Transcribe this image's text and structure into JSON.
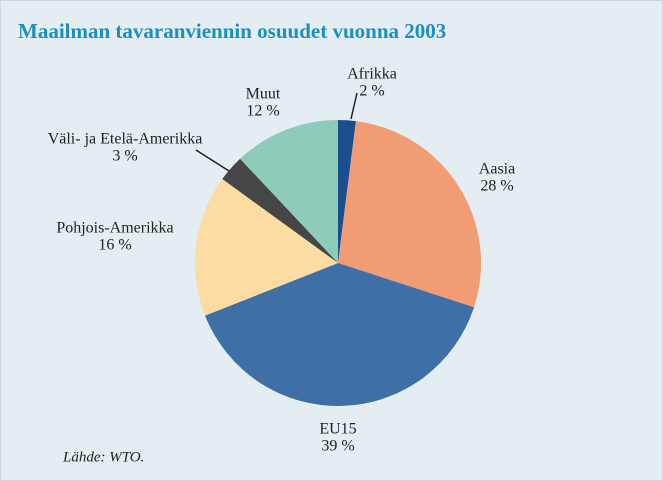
{
  "chart_data": {
    "type": "pie",
    "title": "Maailman tavaranviennin osuudet vuonna 2003",
    "categories": [
      "Afrikka",
      "Aasia",
      "EU15",
      "Pohjois-Amerikka",
      "Väli- ja Etelä-Amerikka",
      "Muut"
    ],
    "values": [
      2,
      28,
      39,
      16,
      3,
      12
    ],
    "value_labels": [
      "2 %",
      "28 %",
      "39 %",
      "16 %",
      "3 %",
      "12 %"
    ],
    "colors": [
      "#1b4e8c",
      "#f29c76",
      "#3e6fa7",
      "#fcdca2",
      "#464646",
      "#8fcbbb"
    ],
    "source": "Lähde: WTO."
  }
}
